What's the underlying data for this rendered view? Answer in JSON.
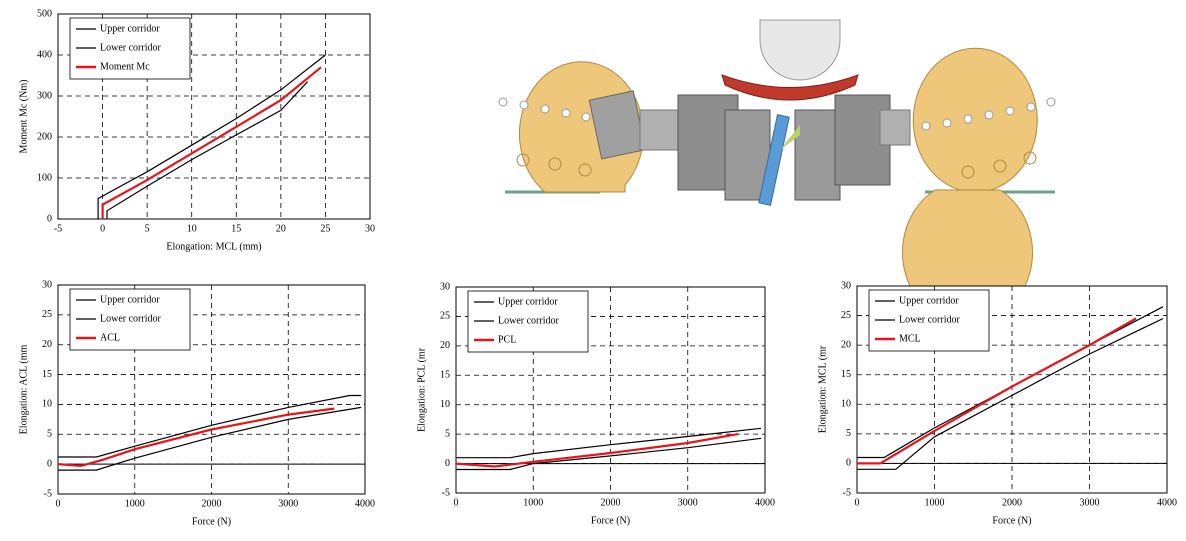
{
  "chart_data": [
    {
      "type": "line",
      "x_label": "Elongation: MCL (mm)",
      "y_label": "Moment Mc (Nm)",
      "xlim": [
        -5,
        30
      ],
      "xticks": [
        -5,
        0,
        5,
        10,
        15,
        20,
        25,
        30
      ],
      "ylim": [
        0,
        500
      ],
      "yticks": [
        0,
        100,
        200,
        300,
        400,
        500
      ],
      "grid": true,
      "legend": "upper left",
      "series": [
        {
          "name": "Upper corridor",
          "color": "#000000",
          "x": [
            -0.5,
            -0.5,
            5,
            10,
            15,
            20,
            25
          ],
          "values": [
            0,
            50,
            115,
            180,
            245,
            315,
            400
          ]
        },
        {
          "name": "Lower corridor",
          "color": "#000000",
          "x": [
            0.5,
            0.5,
            5,
            10,
            15,
            20,
            23
          ],
          "values": [
            0,
            20,
            80,
            145,
            205,
            265,
            335
          ]
        },
        {
          "name": "Moment Mc",
          "color": "#e8141c",
          "x": [
            0,
            0,
            5,
            10,
            15,
            20,
            24.5
          ],
          "values": [
            0,
            35,
            95,
            160,
            225,
            290,
            370
          ]
        }
      ]
    },
    {
      "type": "line",
      "x_label": "Force (N)",
      "y_label": "Elongation: ACL (mm",
      "xlim": [
        0,
        4000
      ],
      "xticks": [
        0,
        1000,
        2000,
        3000,
        4000
      ],
      "ylim": [
        -5,
        30
      ],
      "yticks": [
        -5,
        0,
        5,
        10,
        15,
        20,
        25,
        30
      ],
      "grid": true,
      "zero_line": true,
      "legend": "upper left",
      "series": [
        {
          "name": "Upper corridor",
          "color": "#000000",
          "x": [
            0,
            500,
            1000,
            2000,
            3000,
            3800,
            3950
          ],
          "values": [
            1.2,
            1.2,
            3,
            6.5,
            9.5,
            11.5,
            11.5
          ]
        },
        {
          "name": "Lower corridor",
          "color": "#000000",
          "x": [
            0,
            500,
            1000,
            2000,
            3000,
            3950
          ],
          "values": [
            -1,
            -1,
            1,
            4.5,
            7.5,
            9.5
          ]
        },
        {
          "name": "ACL",
          "color": "#e8141c",
          "x": [
            0,
            300,
            600,
            1000,
            2000,
            3000,
            3600
          ],
          "values": [
            0,
            -0.3,
            0.8,
            2.5,
            5.8,
            8.3,
            9.3
          ]
        }
      ]
    },
    {
      "type": "line",
      "x_label": "Force (N)",
      "y_label": "Elongation: PCL (mr",
      "xlim": [
        0,
        4000
      ],
      "xticks": [
        0,
        1000,
        2000,
        3000,
        4000
      ],
      "ylim": [
        -5,
        30
      ],
      "yticks": [
        -5,
        0,
        5,
        10,
        15,
        20,
        25,
        30
      ],
      "grid": true,
      "zero_line": true,
      "legend": "upper left",
      "series": [
        {
          "name": "Upper corridor",
          "color": "#000000",
          "x": [
            0,
            700,
            1000,
            2000,
            3000,
            3950
          ],
          "values": [
            1,
            1,
            1.7,
            3.2,
            4.6,
            6
          ]
        },
        {
          "name": "Lower corridor",
          "color": "#000000",
          "x": [
            0,
            700,
            1000,
            2000,
            3000,
            3950
          ],
          "values": [
            -1,
            -1,
            0,
            1.3,
            2.7,
            4.3
          ]
        },
        {
          "name": "PCL",
          "color": "#e8141c",
          "x": [
            0,
            500,
            1000,
            2000,
            3000,
            3650
          ],
          "values": [
            0,
            -0.5,
            0.3,
            1.8,
            3.5,
            5
          ]
        }
      ]
    },
    {
      "type": "line",
      "x_label": "Force (N)",
      "y_label": "Elongation: MCL (mr",
      "xlim": [
        0,
        4000
      ],
      "xticks": [
        0,
        1000,
        2000,
        3000,
        4000
      ],
      "ylim": [
        -5,
        30
      ],
      "yticks": [
        -5,
        0,
        5,
        10,
        15,
        20,
        25,
        30
      ],
      "grid": true,
      "zero_line": true,
      "legend": "upper left",
      "series": [
        {
          "name": "Upper corridor",
          "color": "#000000",
          "x": [
            0,
            350,
            1000,
            2000,
            3000,
            3950
          ],
          "values": [
            1,
            1,
            6,
            13,
            20,
            26.5
          ]
        },
        {
          "name": "Lower corridor",
          "color": "#000000",
          "x": [
            0,
            500,
            1000,
            2000,
            3000,
            3950
          ],
          "values": [
            -1,
            -1,
            4.5,
            11.5,
            18.5,
            24.5
          ]
        },
        {
          "name": "MCL",
          "color": "#e8141c",
          "x": [
            0,
            300,
            1000,
            2000,
            3000,
            3600
          ],
          "values": [
            0,
            0,
            5.5,
            13,
            20,
            24.5
          ]
        }
      ]
    }
  ]
}
